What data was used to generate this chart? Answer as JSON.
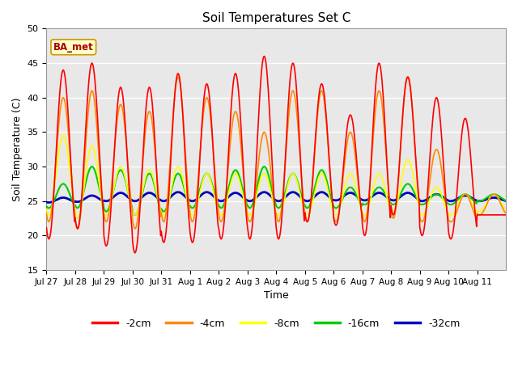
{
  "title": "Soil Temperatures Set C",
  "xlabel": "Time",
  "ylabel": "Soil Temperature (C)",
  "ylim": [
    15,
    50
  ],
  "yticks": [
    15,
    20,
    25,
    30,
    35,
    40,
    45,
    50
  ],
  "annotation": "BA_met",
  "plot_bg_color": "#e8e8e8",
  "colors": {
    "-2cm": "#ff0000",
    "-4cm": "#ff8800",
    "-8cm": "#ffff00",
    "-16cm": "#00cc00",
    "-32cm": "#0000bb"
  },
  "legend_labels": [
    "-2cm",
    "-4cm",
    "-8cm",
    "-16cm",
    "-32cm"
  ],
  "xtick_labels": [
    "Jul 27",
    "Jul 28",
    "Jul 29",
    "Jul 30",
    "Jul 31",
    "Aug 1",
    "Aug 2",
    "Aug 3",
    "Aug 4",
    "Aug 5",
    "Aug 6",
    "Aug 7",
    "Aug 8",
    "Aug 9",
    "Aug 10",
    "Aug 11"
  ],
  "n_days": 16,
  "samples_per_day": 48,
  "depth_params": {
    "-2cm": {
      "day_max": [
        44,
        45,
        41.5,
        41.5,
        43.5,
        42,
        43.5,
        46,
        45,
        42,
        37.5,
        45,
        43,
        40,
        37,
        23
      ],
      "night_min": [
        19.5,
        21,
        18.5,
        17.5,
        19,
        19,
        19.5,
        19.5,
        19.5,
        22,
        21.5,
        20,
        23,
        20,
        19.5,
        23
      ]
    },
    "-4cm": {
      "day_max": [
        40,
        41,
        39,
        38,
        43,
        40,
        38,
        35,
        41,
        41,
        35,
        41,
        43,
        32.5,
        26,
        26
      ],
      "night_min": [
        22,
        21,
        22,
        21,
        22,
        22,
        22,
        22,
        22,
        22,
        22,
        22,
        22.5,
        22,
        22,
        23
      ]
    },
    "-8cm": {
      "day_max": [
        34.5,
        33,
        30,
        29.5,
        30,
        29,
        29,
        29,
        29,
        29,
        29,
        29,
        31,
        27,
        26,
        26
      ],
      "night_min": [
        23,
        22.5,
        23,
        23,
        23,
        23,
        23,
        23,
        23,
        23,
        23,
        23,
        23.5,
        23,
        23,
        23.5
      ]
    },
    "-16cm": {
      "day_max": [
        27.5,
        30,
        29.5,
        29,
        29,
        29,
        29.5,
        30,
        29,
        29.5,
        27,
        27,
        27.5,
        26,
        26,
        26
      ],
      "night_min": [
        24,
        24,
        23.5,
        23,
        23.5,
        24,
        24,
        24,
        24,
        24,
        24,
        24.5,
        24.5,
        24.5,
        24.5,
        25
      ]
    },
    "-32cm": {
      "day_max": [
        25.5,
        25.8,
        26.2,
        26.2,
        26.3,
        26.3,
        26.2,
        26.3,
        26.3,
        26.3,
        26.2,
        26.2,
        26.2,
        26.0,
        25.8,
        25.5
      ],
      "night_min": [
        24.8,
        24.9,
        25.0,
        25.0,
        25.0,
        25.0,
        25.0,
        25.0,
        25.0,
        25.0,
        25.1,
        25.1,
        25.1,
        25.0,
        25.0,
        25.0
      ]
    }
  },
  "peak_hour": 14,
  "line_widths": {
    "-2cm": 1.2,
    "-4cm": 1.2,
    "-8cm": 1.2,
    "-16cm": 1.5,
    "-32cm": 2.0
  }
}
